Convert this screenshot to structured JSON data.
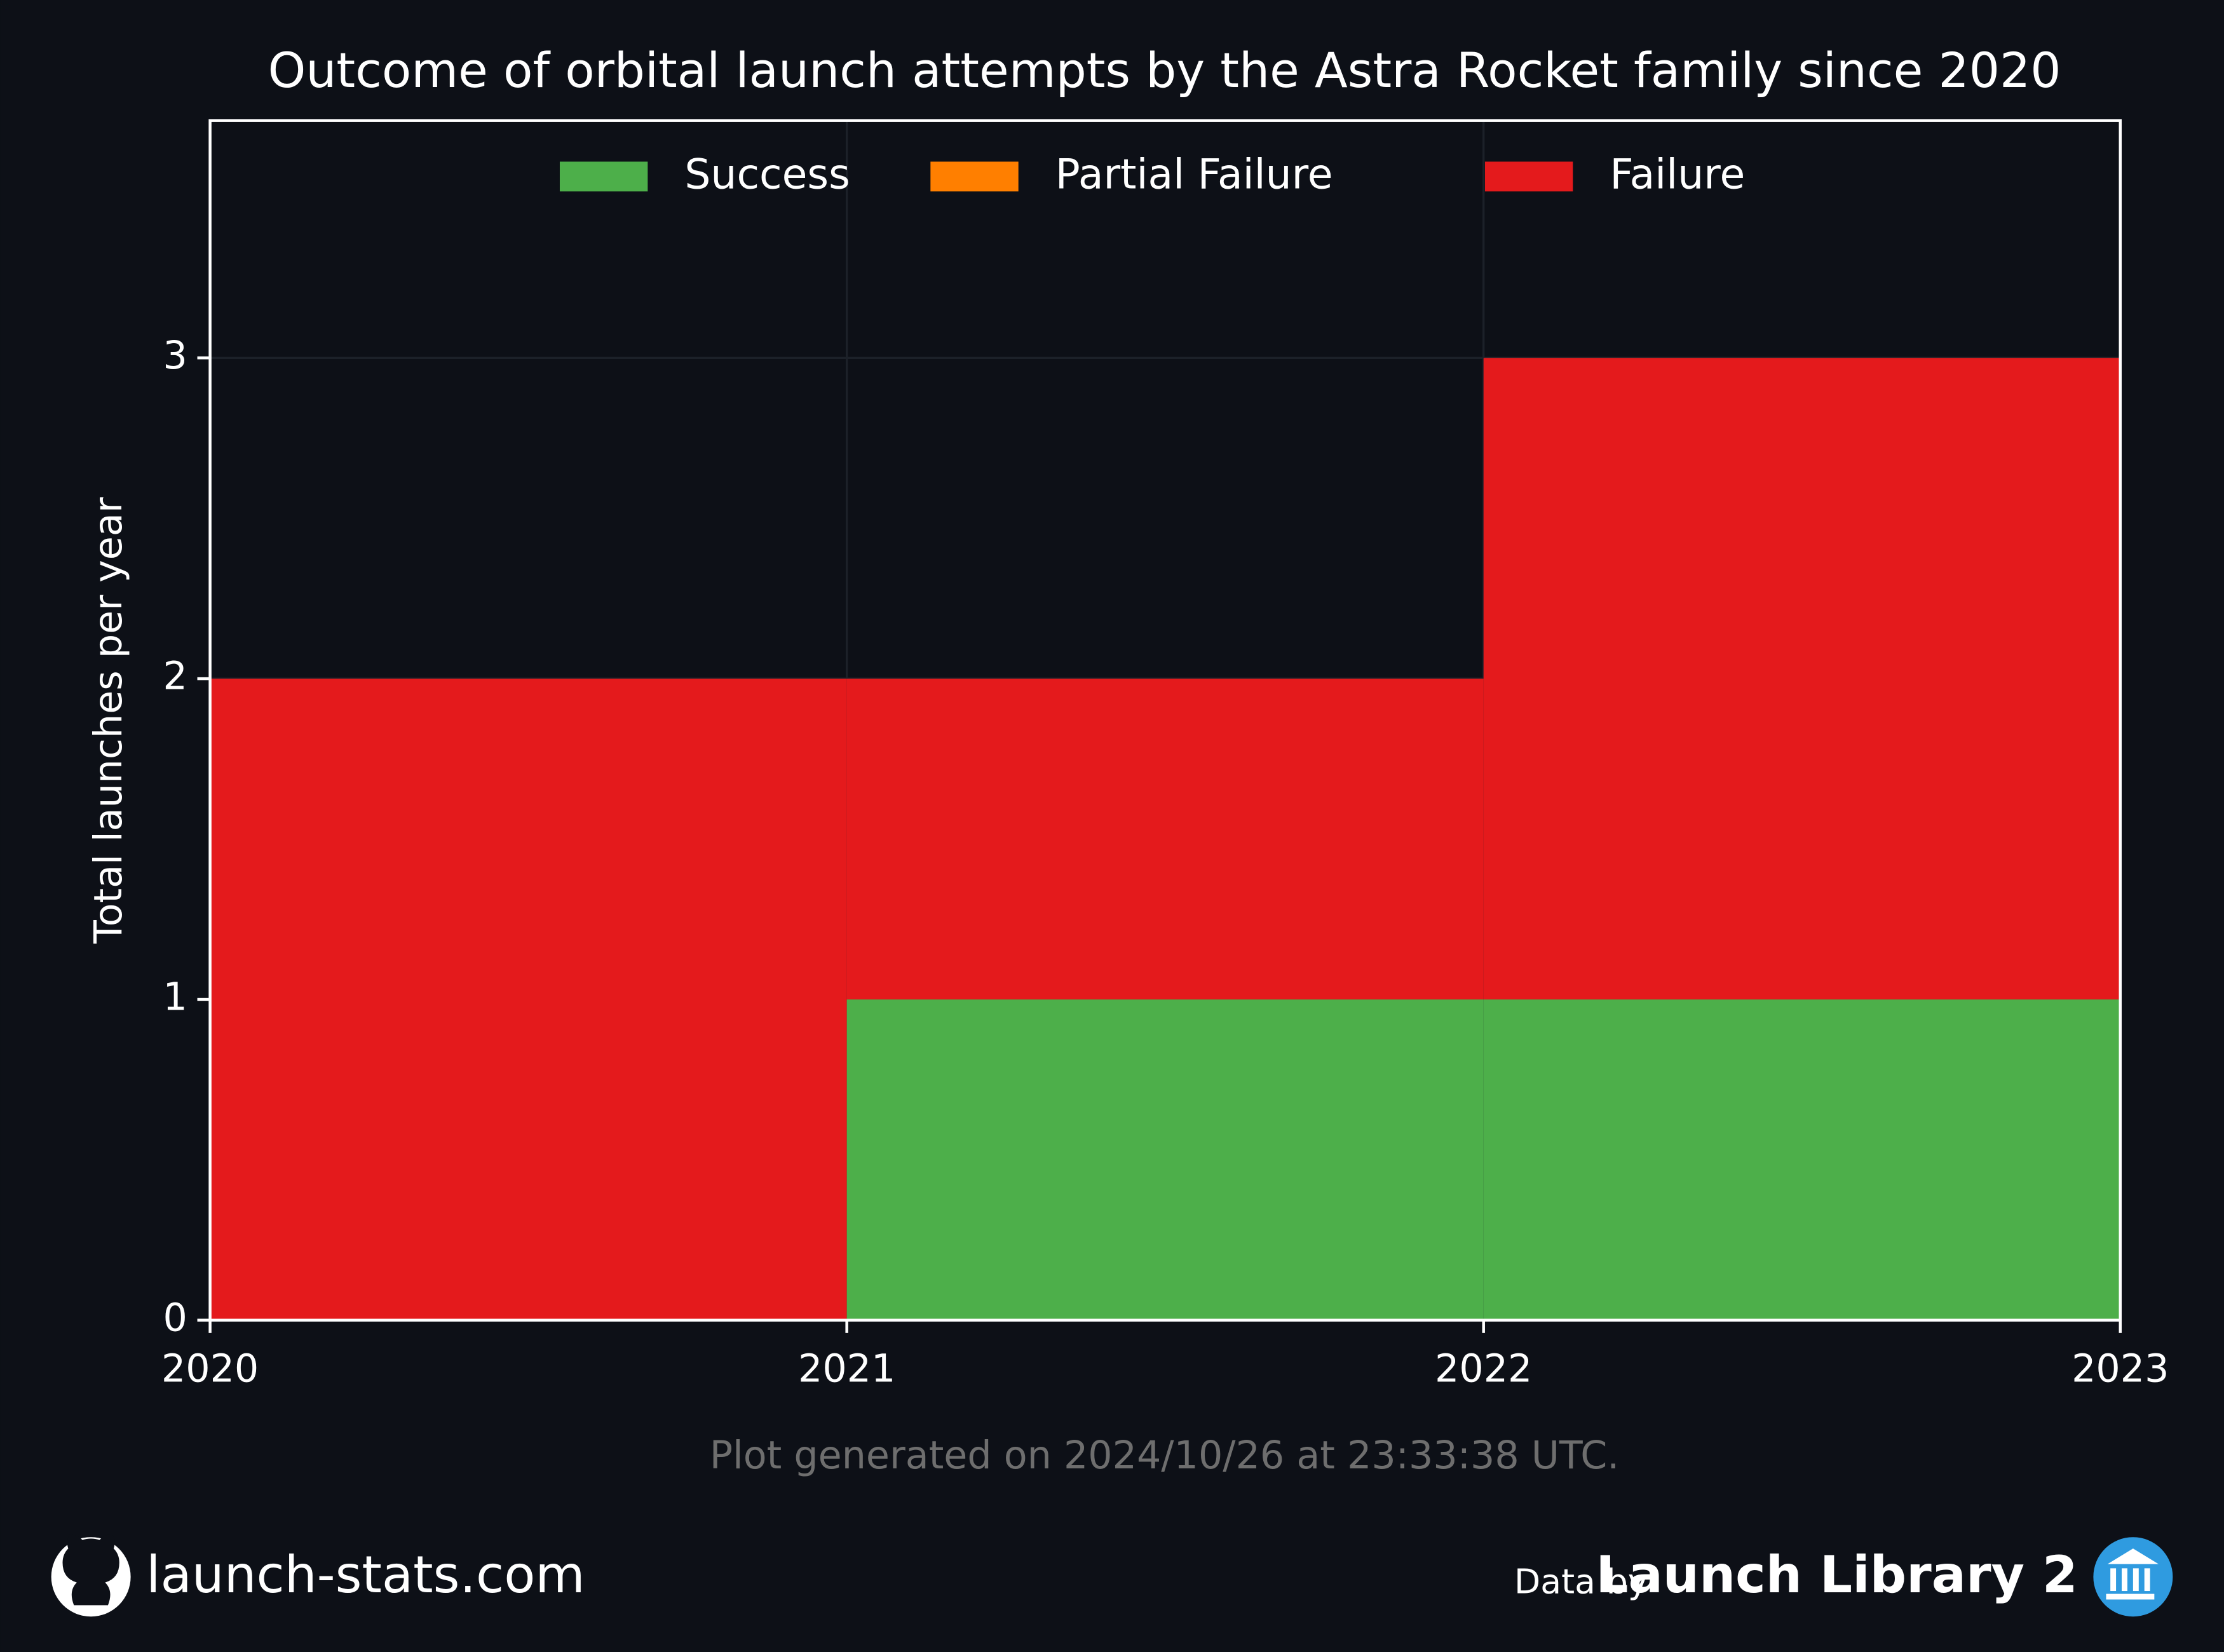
{
  "chart_data": {
    "type": "histogram",
    "title": "Outcome of orbital launch attempts by the Astra Rocket family since 2020",
    "ylabel": "Total launches per year",
    "bins": [
      2020,
      2021,
      2022,
      2023
    ],
    "series": [
      {
        "name": "Success",
        "color": "#4daf4a",
        "values": [
          0,
          1,
          1
        ]
      },
      {
        "name": "Partial Failure",
        "color": "#ff7f00",
        "values": [
          0,
          0,
          0
        ]
      },
      {
        "name": "Failure",
        "color": "#e41a1c",
        "values": [
          2,
          1,
          2
        ]
      }
    ],
    "stacked": true,
    "xlim": [
      2020,
      2023
    ],
    "xticks": [
      2020,
      2021,
      2022,
      2023
    ],
    "ylim": [
      0,
      3.74
    ],
    "yticks": [
      0,
      1,
      2,
      3
    ],
    "grid": true,
    "legend": "upper center"
  },
  "footer": {
    "generated": "Plot generated on 2024/10/26 at 23:33:38 UTC.",
    "site": "launch-stats.com",
    "data_by": "Data by",
    "source": "Launch Library 2"
  }
}
